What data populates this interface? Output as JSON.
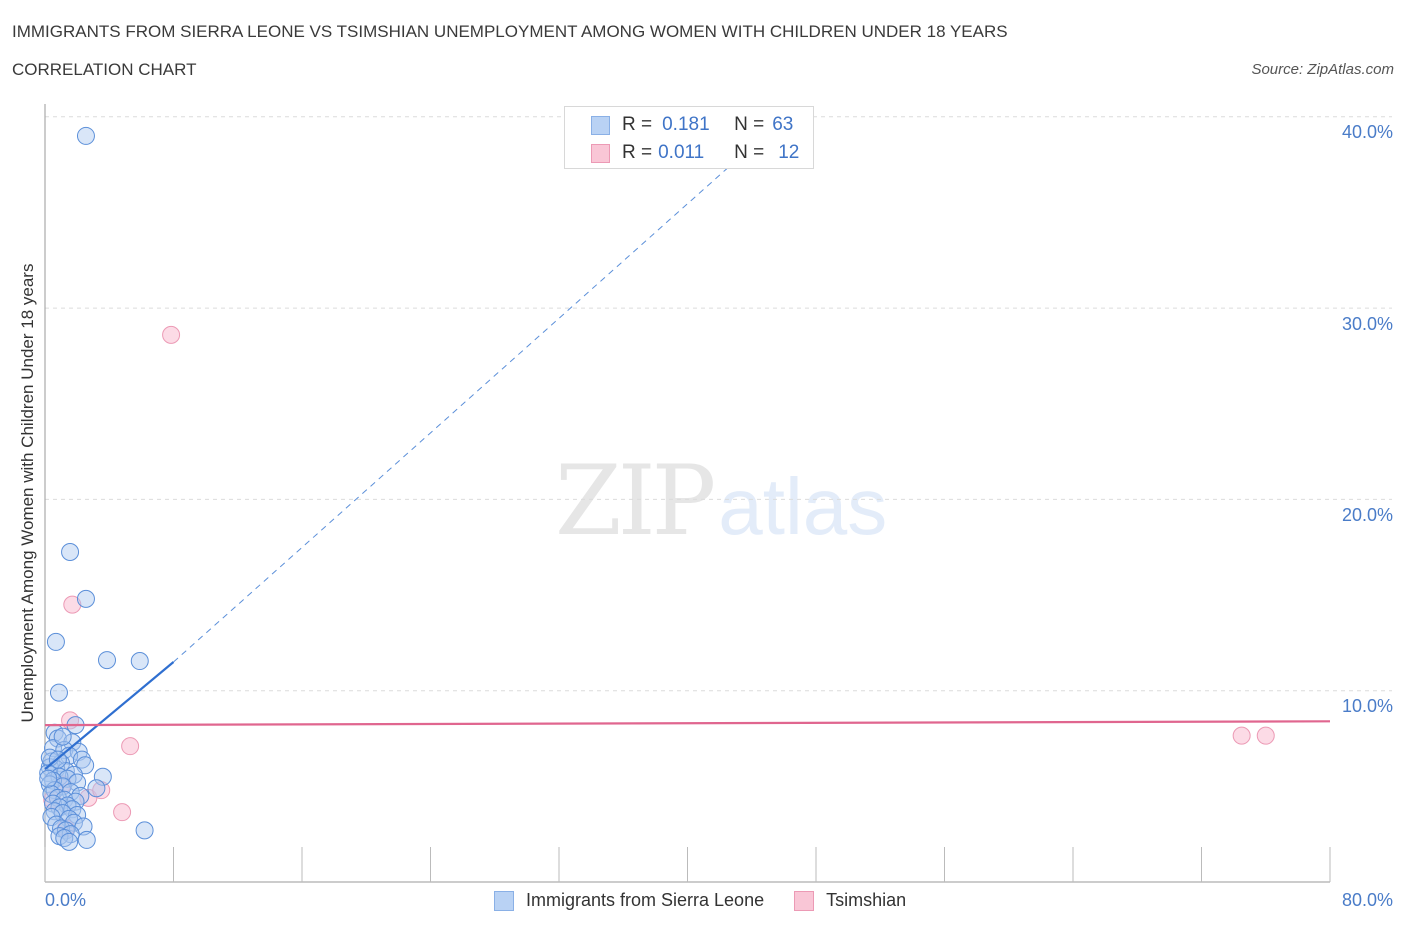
{
  "header": {
    "title": "IMMIGRANTS FROM SIERRA LEONE VS TSIMSHIAN UNEMPLOYMENT AMONG WOMEN WITH CHILDREN UNDER 18 YEARS",
    "subtitle": "CORRELATION CHART",
    "source": "Source: ZipAtlas.com"
  },
  "watermark": {
    "zip": "ZIP",
    "atlas": "atlas"
  },
  "legend_stats": {
    "r_label": "R =",
    "n_label": "N =",
    "series": [
      {
        "name": "Immigrants from Sierra Leone",
        "r": "0.181",
        "n": "63",
        "color": "#b9d2f4"
      },
      {
        "name": "Tsimshian",
        "r": "0.011",
        "n": "12",
        "color": "#f9c6d6"
      }
    ]
  },
  "axes": {
    "y_label": "Unemployment Among Women with Children Under 18 years",
    "y_ticks": [
      "40.0%",
      "30.0%",
      "20.0%",
      "10.0%"
    ],
    "x_ticks": [
      "0.0%",
      "80.0%"
    ]
  },
  "bottom_legend": [
    "Immigrants from Sierra Leone",
    "Tsimshian"
  ],
  "chart_data": {
    "type": "scatter",
    "title": "Immigrants from Sierra Leone vs Tsimshian Unemployment Among Women with Children Under 18 Years",
    "subtitle": "Correlation Chart",
    "xlabel": "",
    "ylabel": "Unemployment Among Women with Children Under 18 years",
    "xlim": [
      0,
      80
    ],
    "ylim": [
      0,
      42
    ],
    "x_ticks": [
      0,
      80
    ],
    "y_ticks": [
      10,
      20,
      30,
      40
    ],
    "grid": "horizontal dashed",
    "legend_position": "bottom",
    "series": [
      {
        "name": "Immigrants from Sierra Leone",
        "color": "#5b8fd9",
        "R": 0.181,
        "N": 63,
        "trend": {
          "x": [
            0,
            8,
            43
          ],
          "y": [
            5.9,
            11.5,
            37.7
          ],
          "style": "solid to x=8, dashed beyond"
        },
        "points": [
          [
            2.55,
            39.0
          ],
          [
            1.56,
            17.25
          ],
          [
            2.55,
            14.8
          ],
          [
            0.68,
            12.55
          ],
          [
            3.86,
            11.6
          ],
          [
            5.9,
            11.55
          ],
          [
            0.87,
            9.9
          ],
          [
            1.9,
            8.2
          ],
          [
            0.6,
            7.8
          ],
          [
            0.8,
            7.5
          ],
          [
            1.7,
            7.3
          ],
          [
            0.5,
            7.0
          ],
          [
            1.2,
            6.9
          ],
          [
            2.1,
            6.8
          ],
          [
            1.5,
            6.6
          ],
          [
            2.3,
            6.4
          ],
          [
            0.4,
            6.3
          ],
          [
            1.0,
            6.2
          ],
          [
            2.5,
            6.1
          ],
          [
            0.3,
            6.0
          ],
          [
            0.7,
            5.9
          ],
          [
            1.3,
            5.8
          ],
          [
            0.2,
            5.7
          ],
          [
            1.8,
            5.6
          ],
          [
            0.9,
            5.5
          ],
          [
            3.6,
            5.5
          ],
          [
            1.4,
            5.4
          ],
          [
            0.5,
            5.3
          ],
          [
            2.0,
            5.2
          ],
          [
            0.3,
            5.1
          ],
          [
            1.1,
            5.0
          ],
          [
            3.2,
            4.9
          ],
          [
            0.6,
            4.8
          ],
          [
            1.6,
            4.7
          ],
          [
            0.4,
            4.6
          ],
          [
            2.2,
            4.5
          ],
          [
            0.8,
            4.4
          ],
          [
            1.2,
            4.3
          ],
          [
            1.9,
            4.2
          ],
          [
            0.5,
            4.1
          ],
          [
            1.4,
            4.0
          ],
          [
            0.9,
            3.9
          ],
          [
            1.7,
            3.8
          ],
          [
            0.6,
            3.7
          ],
          [
            1.1,
            3.6
          ],
          [
            2.0,
            3.5
          ],
          [
            0.4,
            3.4
          ],
          [
            1.5,
            3.3
          ],
          [
            1.8,
            3.1
          ],
          [
            0.7,
            3.0
          ],
          [
            2.4,
            2.9
          ],
          [
            1.0,
            2.8
          ],
          [
            1.3,
            2.7
          ],
          [
            6.2,
            2.7
          ],
          [
            1.6,
            2.5
          ],
          [
            0.9,
            2.4
          ],
          [
            1.2,
            2.3
          ],
          [
            2.6,
            2.2
          ],
          [
            1.5,
            2.1
          ],
          [
            0.3,
            6.5
          ],
          [
            0.2,
            5.4
          ],
          [
            0.8,
            6.4
          ],
          [
            1.1,
            7.6
          ]
        ]
      },
      {
        "name": "Tsimshian",
        "color": "#ee8fae",
        "R": 0.011,
        "N": 12,
        "trend": {
          "x": [
            0,
            80
          ],
          "y": [
            8.2,
            8.4
          ],
          "style": "solid"
        },
        "points": [
          [
            7.85,
            28.6
          ],
          [
            1.7,
            14.5
          ],
          [
            1.56,
            8.45
          ],
          [
            5.3,
            7.1
          ],
          [
            74.5,
            7.65
          ],
          [
            76.0,
            7.65
          ],
          [
            4.8,
            3.65
          ],
          [
            2.7,
            4.4
          ],
          [
            3.5,
            4.8
          ],
          [
            0.45,
            4.3
          ],
          [
            1.1,
            5.1
          ],
          [
            1.3,
            2.8
          ]
        ]
      }
    ]
  }
}
